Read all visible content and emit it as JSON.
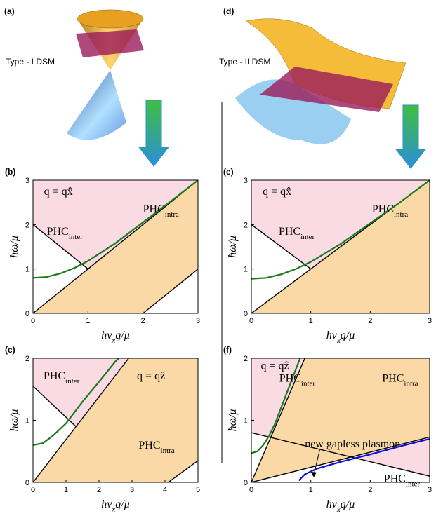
{
  "labels": {
    "a": "(a)",
    "d": "(d)",
    "type1": "Type - I DSM",
    "type2": "Type - II DSM"
  },
  "chart_data": [
    {
      "type": "line",
      "panel": "(b)",
      "xlim": [
        0,
        3
      ],
      "ylim": [
        0,
        3
      ],
      "xticks": [
        0,
        1,
        2,
        3
      ],
      "yticks": [
        0,
        1,
        2,
        3
      ],
      "xlabel": [
        "ħv",
        "x",
        "q/μ"
      ],
      "ylabel": "ħω/μ",
      "regions": [
        {
          "color": "#fadbe3",
          "x": [
            0,
            1,
            3,
            0
          ],
          "y": [
            2,
            1,
            3,
            3
          ]
        },
        {
          "color": "#fbd9a6",
          "x": [
            0,
            3,
            3,
            2
          ],
          "y": [
            0,
            3,
            1,
            0
          ]
        }
      ],
      "series": [
        {
          "color": "#000000",
          "x": [
            0,
            3
          ],
          "y": [
            0,
            3
          ]
        },
        {
          "color": "#000000",
          "x": [
            0,
            1
          ],
          "y": [
            2,
            1
          ]
        },
        {
          "color": "#000000",
          "x": [
            2,
            3
          ],
          "y": [
            0,
            1
          ]
        },
        {
          "color": "#1a7a1a",
          "x": [
            0,
            0.25,
            0.5,
            0.75,
            1,
            1.5,
            2,
            2.5,
            3
          ],
          "y": [
            0.8,
            0.82,
            0.9,
            1.02,
            1.18,
            1.58,
            2.05,
            2.52,
            3
          ]
        }
      ],
      "annotations": [
        {
          "text": "q = qx̂"
        },
        {
          "text": "PHC",
          "sub": "inter"
        },
        {
          "text": "PHC",
          "sub": "intra"
        }
      ]
    },
    {
      "type": "line",
      "panel": "(c)",
      "xlim": [
        0,
        5
      ],
      "ylim": [
        0,
        2
      ],
      "xticks": [
        0,
        1,
        2,
        3,
        4,
        5
      ],
      "yticks": [
        0,
        1,
        2
      ],
      "xlabel": [
        "ħv",
        "x",
        "q/μ"
      ],
      "ylabel": "ħω/μ",
      "regions": [
        {
          "color": "#fadbe3",
          "x": [
            0,
            1.3,
            2.9,
            0
          ],
          "y": [
            1.55,
            0.9,
            2,
            2
          ]
        },
        {
          "color": "#fbd9a6",
          "x": [
            0,
            2.9,
            5,
            5,
            4.1
          ],
          "y": [
            0,
            2,
            2,
            0.35,
            0
          ]
        }
      ],
      "series": [
        {
          "color": "#000000",
          "x": [
            0,
            2.9
          ],
          "y": [
            0,
            2
          ]
        },
        {
          "color": "#000000",
          "x": [
            0,
            1.3
          ],
          "y": [
            1.55,
            0.9
          ]
        },
        {
          "color": "#000000",
          "x": [
            4.1,
            5
          ],
          "y": [
            0,
            0.35
          ]
        },
        {
          "color": "#1a7a1a",
          "x": [
            0,
            0.3,
            0.6,
            1,
            1.5,
            2,
            2.5,
            2.6
          ],
          "y": [
            0.6,
            0.63,
            0.75,
            0.95,
            1.3,
            1.62,
            1.95,
            2
          ]
        }
      ],
      "annotations": [
        {
          "text": "PHC",
          "sub": "inter"
        },
        {
          "text": "q = qẑ"
        },
        {
          "text": "PHC",
          "sub": "intra"
        }
      ]
    },
    {
      "type": "line",
      "panel": "(e)",
      "xlim": [
        0,
        3
      ],
      "ylim": [
        0,
        3
      ],
      "xticks": [
        0,
        1,
        2,
        3
      ],
      "yticks": [
        0,
        1,
        2,
        3
      ],
      "xlabel": [
        "ħv",
        "x",
        "q/μ"
      ],
      "ylabel": "ħω/μ",
      "regions": [
        {
          "color": "#fadbe3",
          "x": [
            0,
            1,
            3,
            0
          ],
          "y": [
            2,
            1,
            3,
            3
          ]
        },
        {
          "color": "#fbd9a6",
          "x": [
            0,
            3,
            3
          ],
          "y": [
            0,
            3,
            0
          ]
        }
      ],
      "series": [
        {
          "color": "#000000",
          "x": [
            0,
            3
          ],
          "y": [
            0,
            3
          ]
        },
        {
          "color": "#000000",
          "x": [
            0,
            1
          ],
          "y": [
            2,
            1
          ]
        },
        {
          "color": "#1a7a1a",
          "x": [
            0,
            0.25,
            0.5,
            0.75,
            1,
            1.5,
            2,
            2.5,
            3
          ],
          "y": [
            0.78,
            0.8,
            0.88,
            1.0,
            1.16,
            1.56,
            2.03,
            2.5,
            3
          ]
        }
      ],
      "annotations": [
        {
          "text": "q = qx̂"
        },
        {
          "text": "PHC",
          "sub": "inter"
        },
        {
          "text": "PHC",
          "sub": "intra"
        }
      ]
    },
    {
      "type": "line",
      "panel": "(f)",
      "xlim": [
        0,
        3
      ],
      "ylim": [
        0,
        2
      ],
      "xticks": [
        0,
        1,
        2,
        3
      ],
      "yticks": [
        0,
        1,
        2
      ],
      "xlabel": [
        "ħv",
        "x",
        "q/μ"
      ],
      "ylabel": "ħω/μ",
      "regions": [
        {
          "color": "#fadbe3",
          "x": [
            0,
            0.326,
            0.9,
            0
          ],
          "y": [
            0.8,
            0.72,
            2,
            2
          ]
        },
        {
          "color": "#fbd9a6",
          "x": [
            0,
            0.9,
            3,
            3
          ],
          "y": [
            0,
            2,
            2,
            0.73
          ]
        },
        {
          "color": "#fadbe3",
          "x": [
            1.68,
            3,
            3
          ],
          "y": [
            0.41,
            0.73,
            0.1
          ]
        }
      ],
      "series": [
        {
          "color": "#000000",
          "x": [
            0,
            0.9
          ],
          "y": [
            0,
            2
          ]
        },
        {
          "color": "#000000",
          "x": [
            0,
            3
          ],
          "y": [
            0,
            0.73
          ]
        },
        {
          "color": "#000000",
          "x": [
            0,
            3
          ],
          "y": [
            0.8,
            0.1
          ]
        },
        {
          "color": "#1a7a1a",
          "x": [
            0,
            0.1,
            0.2,
            0.3,
            0.4,
            0.5,
            0.6,
            0.7,
            0.82
          ],
          "y": [
            0.47,
            0.5,
            0.6,
            0.75,
            0.95,
            1.2,
            1.45,
            1.7,
            2
          ]
        },
        {
          "color": "#1010d0",
          "x": [
            0.8,
            0.9,
            1.1,
            1.5,
            2,
            2.5,
            3
          ],
          "y": [
            0.03,
            0.13,
            0.22,
            0.33,
            0.45,
            0.58,
            0.7
          ]
        }
      ],
      "annotations": [
        {
          "text": "q = qẑ"
        },
        {
          "text": "PHC",
          "sub": "inter"
        },
        {
          "text": "PHC",
          "sub": "intra"
        },
        {
          "text": "new gapless plasmon"
        },
        {
          "text": "PHC",
          "sub": "inter"
        }
      ]
    }
  ]
}
